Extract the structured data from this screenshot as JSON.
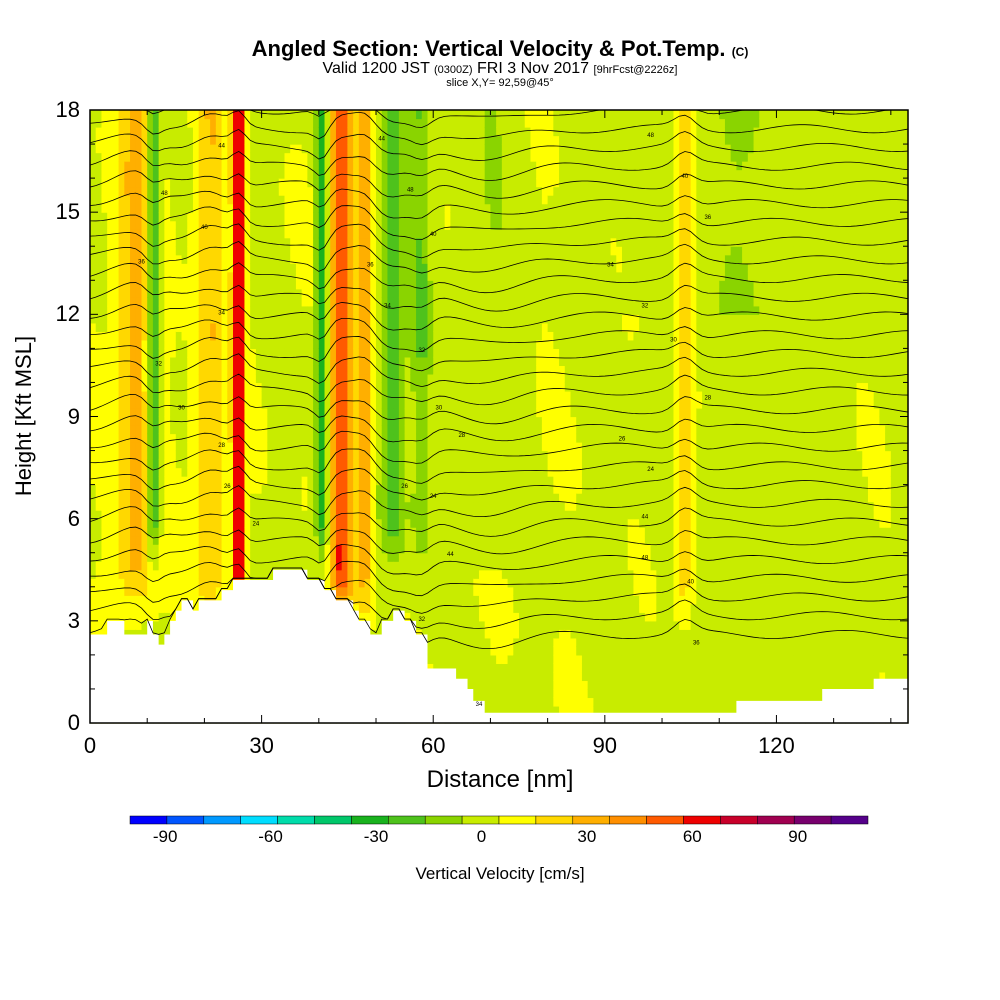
{
  "title": {
    "main": "Angled Section: Vertical Velocity & Pot.Temp.",
    "main_units": "(C)",
    "valid_prefix": "Valid 1200 JST",
    "valid_utc": "(0300Z)",
    "valid_date": "FRI 3 Nov 2017",
    "forecast": "[9hrFcst@2226z]",
    "slice": "slice X,Y= 92,59@45°"
  },
  "chart_data": {
    "type": "heatmap",
    "xlabel": "Distance [nm]",
    "ylabel": "Height [Kft MSL]",
    "xlim": [
      0,
      143
    ],
    "ylim": [
      0,
      18
    ],
    "x_ticks": [
      0,
      30,
      60,
      90,
      120
    ],
    "y_ticks": [
      0,
      3,
      6,
      9,
      12,
      15,
      18
    ],
    "colorbar": {
      "label": "Vertical Velocity [cm/s]",
      "ticks": [
        -90,
        -60,
        -30,
        0,
        30,
        60,
        90
      ],
      "range": [
        -100,
        110
      ],
      "colors": [
        "#0000ff",
        "#0055ff",
        "#0099ff",
        "#00ddff",
        "#00dcaa",
        "#00c76a",
        "#19b21e",
        "#4ec21c",
        "#8ad400",
        "#c8ec00",
        "#ffff00",
        "#ffd800",
        "#ffaf00",
        "#ff8f00",
        "#ff5a00",
        "#ee0000",
        "#c8002a",
        "#a00050",
        "#78006e",
        "#55008a"
      ]
    },
    "theta_label_samples": [
      "44",
      "48",
      "40",
      "36",
      "34",
      "32",
      "30",
      "28",
      "26",
      "24"
    ],
    "updraft_columns": [
      {
        "x": 8,
        "w": 3.5,
        "v": 25
      },
      {
        "x": 21,
        "w": 2.5,
        "v": 22
      },
      {
        "x": 26,
        "w": 1.0,
        "v": 75
      },
      {
        "x": 44,
        "w": 1.8,
        "v": 55
      },
      {
        "x": 48,
        "w": 1.5,
        "v": 30
      },
      {
        "x": 104,
        "w": 1.5,
        "v": 25
      }
    ],
    "downdraft_columns": [
      {
        "x": 11,
        "w": 1.2,
        "v": -40
      },
      {
        "x": 40.5,
        "w": 1.0,
        "v": -40
      },
      {
        "x": 53,
        "w": 2.5,
        "v": -25
      },
      {
        "x": 58,
        "w": 1.5,
        "v": -20
      },
      {
        "x": 70,
        "w": 5,
        "v": -8
      }
    ],
    "terrain": {
      "x": [
        0,
        3,
        3,
        6,
        6,
        9,
        9,
        10,
        10,
        11,
        11,
        12,
        12,
        13,
        13,
        14,
        14,
        15,
        15,
        16,
        16,
        18,
        18,
        19,
        19,
        23,
        23,
        25,
        25,
        27,
        27,
        29,
        29,
        32,
        32,
        35,
        35,
        38,
        38,
        41,
        41,
        43,
        43,
        46,
        46,
        47,
        47,
        49,
        49,
        51,
        51,
        53,
        53,
        55,
        55,
        57,
        57,
        59,
        59,
        62,
        62,
        64,
        64,
        66,
        66,
        67,
        67,
        69,
        69,
        71,
        71,
        113,
        113,
        120,
        120,
        128,
        128,
        137,
        137,
        143
      ],
      "y": [
        2.6,
        2.6,
        3.0,
        3.0,
        2.6,
        2.6,
        2.6,
        2.6,
        3.0,
        3.0,
        2.6,
        2.6,
        2.3,
        2.3,
        2.6,
        2.6,
        3.0,
        3.0,
        3.3,
        3.3,
        3.6,
        3.6,
        3.3,
        3.3,
        3.6,
        3.6,
        3.9,
        3.9,
        4.2,
        4.2,
        4.2,
        4.2,
        4.2,
        4.2,
        4.5,
        4.5,
        4.5,
        4.5,
        4.2,
        4.2,
        3.9,
        3.9,
        3.6,
        3.6,
        3.3,
        3.3,
        3.0,
        3.0,
        2.6,
        2.6,
        3.0,
        3.0,
        3.3,
        3.3,
        3.0,
        3.0,
        2.6,
        2.6,
        1.6,
        1.6,
        1.6,
        1.6,
        1.3,
        1.3,
        1.0,
        1.0,
        0.65,
        0.65,
        0.3,
        0.3,
        0.3,
        0.3,
        0.65,
        0.65,
        0.65,
        0.65,
        1.0,
        1.0,
        1.3,
        1.3
      ]
    }
  }
}
